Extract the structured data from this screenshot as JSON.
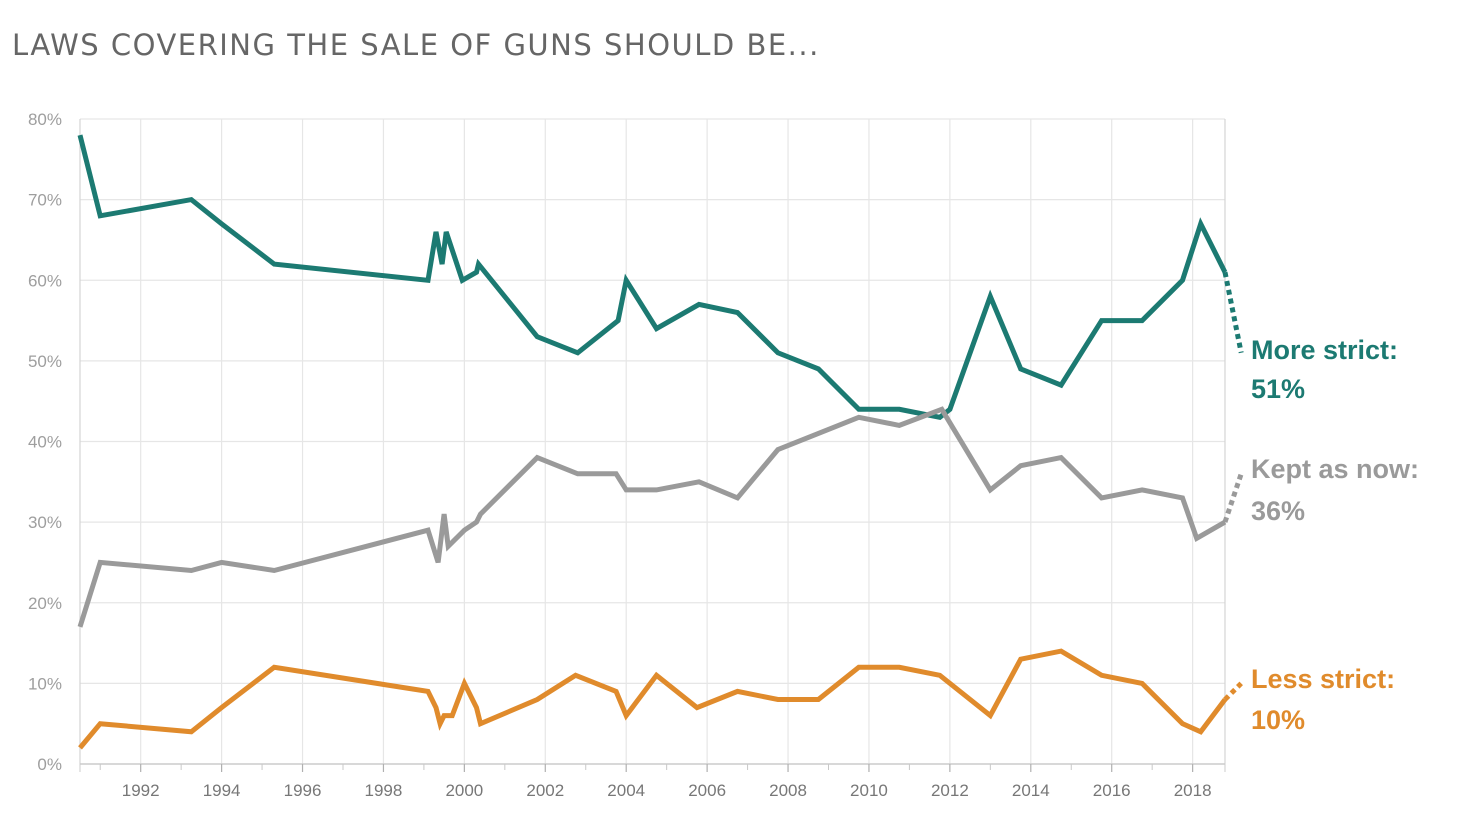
{
  "title": "LAWS COVERING THE SALE OF GUNS SHOULD BE...",
  "chart_data": {
    "type": "line",
    "title": "LAWS COVERING THE SALE OF GUNS SHOULD BE...",
    "xlabel": "",
    "ylabel": "",
    "xlim": [
      1990.5,
      2018.8
    ],
    "ylim": [
      0,
      80
    ],
    "x_ticks": [
      "1992",
      "1994",
      "1996",
      "1998",
      "2000",
      "2002",
      "2004",
      "2006",
      "2008",
      "2010",
      "2012",
      "2014",
      "2016",
      "2018"
    ],
    "y_ticks": [
      "0%",
      "10%",
      "20%",
      "30%",
      "40%",
      "50%",
      "60%",
      "70%",
      "80%"
    ],
    "grid": true,
    "series": [
      {
        "name": "More strict",
        "color": "#1c7a72",
        "end_label": "More strict:",
        "end_value": "51%",
        "values": [
          [
            1990.5,
            78
          ],
          [
            1991.0,
            68
          ],
          [
            1993.25,
            70
          ],
          [
            1994.0,
            67
          ],
          [
            1995.3,
            62
          ],
          [
            1999.1,
            60
          ],
          [
            1999.3,
            66
          ],
          [
            1999.45,
            62
          ],
          [
            1999.55,
            66
          ],
          [
            1999.95,
            60
          ],
          [
            2000.3,
            61
          ],
          [
            2000.35,
            62
          ],
          [
            2001.8,
            53
          ],
          [
            2002.8,
            51
          ],
          [
            2003.8,
            55
          ],
          [
            2004.0,
            60
          ],
          [
            2004.75,
            54
          ],
          [
            2005.8,
            57
          ],
          [
            2006.75,
            56
          ],
          [
            2007.75,
            51
          ],
          [
            2008.75,
            49
          ],
          [
            2009.75,
            44
          ],
          [
            2010.75,
            44
          ],
          [
            2011.75,
            43
          ],
          [
            2012.0,
            44
          ],
          [
            2013.0,
            58
          ],
          [
            2013.75,
            49
          ],
          [
            2014.75,
            47
          ],
          [
            2015.75,
            55
          ],
          [
            2016.75,
            55
          ],
          [
            2017.75,
            60
          ],
          [
            2018.2,
            67
          ],
          [
            2018.8,
            61
          ]
        ],
        "latest": [
          [
            2018.8,
            61
          ],
          [
            2019.2,
            51
          ]
        ]
      },
      {
        "name": "Kept as now",
        "color": "#9a9a9a",
        "end_label": "Kept as now:",
        "end_value": "36%",
        "values": [
          [
            1990.5,
            17
          ],
          [
            1991.0,
            25
          ],
          [
            1993.25,
            24
          ],
          [
            1994.0,
            25
          ],
          [
            1995.3,
            24
          ],
          [
            1999.1,
            29
          ],
          [
            1999.35,
            25
          ],
          [
            1999.5,
            31
          ],
          [
            1999.6,
            27
          ],
          [
            2000.0,
            29
          ],
          [
            2000.3,
            30
          ],
          [
            2000.4,
            31
          ],
          [
            2001.8,
            38
          ],
          [
            2002.8,
            36
          ],
          [
            2003.75,
            36
          ],
          [
            2004.0,
            34
          ],
          [
            2004.75,
            34
          ],
          [
            2005.8,
            35
          ],
          [
            2006.75,
            33
          ],
          [
            2007.75,
            39
          ],
          [
            2008.75,
            41
          ],
          [
            2009.75,
            43
          ],
          [
            2010.75,
            42
          ],
          [
            2011.8,
            44
          ],
          [
            2013.0,
            34
          ],
          [
            2013.75,
            37
          ],
          [
            2014.75,
            38
          ],
          [
            2015.75,
            33
          ],
          [
            2016.75,
            34
          ],
          [
            2017.75,
            33
          ],
          [
            2018.1,
            28
          ],
          [
            2018.8,
            30
          ]
        ],
        "latest": [
          [
            2018.8,
            30
          ],
          [
            2019.2,
            36
          ]
        ]
      },
      {
        "name": "Less strict",
        "color": "#e08b2c",
        "end_label": "Less strict:",
        "end_value": "10%",
        "values": [
          [
            1990.5,
            2
          ],
          [
            1991.0,
            5
          ],
          [
            1993.25,
            4
          ],
          [
            1994.0,
            7
          ],
          [
            1995.3,
            12
          ],
          [
            1999.1,
            9
          ],
          [
            1999.3,
            7
          ],
          [
            1999.4,
            5
          ],
          [
            1999.5,
            6
          ],
          [
            1999.7,
            6
          ],
          [
            2000.0,
            10
          ],
          [
            2000.3,
            7
          ],
          [
            2000.4,
            5
          ],
          [
            2001.8,
            8
          ],
          [
            2002.75,
            11
          ],
          [
            2003.75,
            9
          ],
          [
            2004.0,
            6
          ],
          [
            2004.75,
            11
          ],
          [
            2005.75,
            7
          ],
          [
            2006.75,
            9
          ],
          [
            2007.75,
            8
          ],
          [
            2008.75,
            8
          ],
          [
            2009.75,
            12
          ],
          [
            2010.75,
            12
          ],
          [
            2011.75,
            11
          ],
          [
            2013.0,
            6
          ],
          [
            2013.75,
            13
          ],
          [
            2014.75,
            14
          ],
          [
            2015.75,
            11
          ],
          [
            2016.75,
            10
          ],
          [
            2017.75,
            5
          ],
          [
            2018.2,
            4
          ],
          [
            2018.8,
            8
          ]
        ],
        "latest": [
          [
            2018.8,
            8
          ],
          [
            2019.2,
            10
          ]
        ]
      }
    ]
  }
}
